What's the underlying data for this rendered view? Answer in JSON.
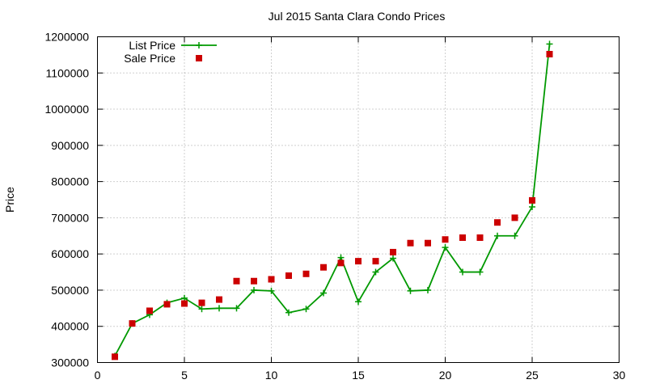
{
  "chart_data": {
    "type": "line",
    "title": "Jul 2015 Santa Clara Condo Prices",
    "xlabel": "",
    "ylabel": "Price",
    "xlim": [
      0,
      30
    ],
    "ylim": [
      300000,
      1200000
    ],
    "xticks": [
      0,
      5,
      10,
      15,
      20,
      25,
      30
    ],
    "yticks": [
      300000,
      400000,
      500000,
      600000,
      700000,
      800000,
      900000,
      1000000,
      1100000,
      1200000
    ],
    "grid": true,
    "legend_position": "top-left",
    "series": [
      {
        "name": "List Price",
        "style": "line+cross",
        "color": "#009900",
        "x": [
          1,
          2,
          3,
          4,
          5,
          6,
          7,
          8,
          9,
          10,
          11,
          12,
          13,
          14,
          15,
          16,
          17,
          18,
          19,
          20,
          21,
          22,
          23,
          24,
          25,
          26
        ],
        "y": [
          318000,
          408000,
          432000,
          465000,
          478000,
          448000,
          450000,
          450000,
          500000,
          498000,
          438000,
          448000,
          492000,
          590000,
          468000,
          550000,
          588000,
          498000,
          500000,
          618000,
          550000,
          550000,
          650000,
          650000,
          730000,
          1180000
        ]
      },
      {
        "name": "Sale Price",
        "style": "square",
        "color": "#cc0000",
        "x": [
          1,
          2,
          3,
          4,
          5,
          6,
          7,
          8,
          9,
          10,
          11,
          12,
          13,
          14,
          15,
          16,
          17,
          18,
          19,
          20,
          21,
          22,
          23,
          24,
          25,
          26
        ],
        "y": [
          316000,
          408000,
          443000,
          461000,
          463000,
          465000,
          474000,
          525000,
          525000,
          530000,
          540000,
          545000,
          563000,
          575000,
          580000,
          580000,
          605000,
          630000,
          630000,
          640000,
          645000,
          645000,
          687000,
          700000,
          748000,
          1152000
        ]
      }
    ]
  }
}
